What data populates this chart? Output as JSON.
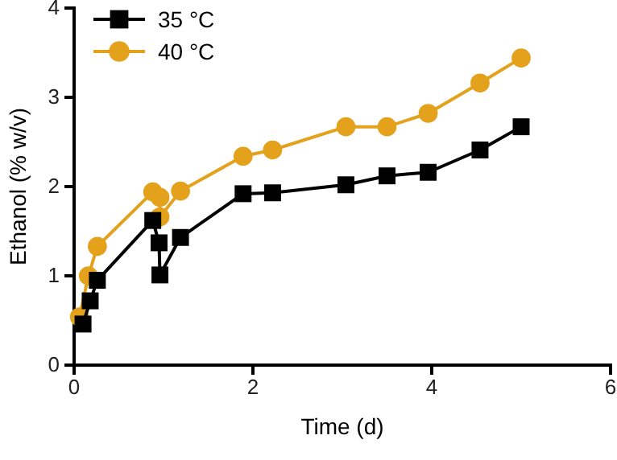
{
  "chart_data": {
    "type": "line",
    "xlabel": "Time (d)",
    "ylabel": "Ethanol (% w/v)",
    "xlim": [
      0,
      6
    ],
    "xticks": [
      0,
      2,
      4,
      6
    ],
    "ylim": [
      0,
      4
    ],
    "yticks": [
      0,
      1,
      2,
      3,
      4
    ],
    "grid": false,
    "legend": "top left",
    "line_style": "solid",
    "series": [
      {
        "name": "40 °C",
        "color": "#e3a11c",
        "marker": "circle",
        "x": [
          0.06,
          0.16,
          0.26,
          0.88,
          0.96,
          0.96,
          1.19,
          1.89,
          2.22,
          3.04,
          3.5,
          3.96,
          4.54,
          5.0
        ],
        "values": [
          0.54,
          1.0,
          1.33,
          1.94,
          1.88,
          1.66,
          1.95,
          2.34,
          2.41,
          2.67,
          2.67,
          2.82,
          3.16,
          3.44
        ]
      },
      {
        "name": "35 °C",
        "color": "#000000",
        "marker": "square",
        "x": [
          0.1,
          0.18,
          0.26,
          0.88,
          0.95,
          0.96,
          1.19,
          1.89,
          2.22,
          3.04,
          3.5,
          3.96,
          4.54,
          5.0
        ],
        "values": [
          0.46,
          0.72,
          0.95,
          1.62,
          1.37,
          1.01,
          1.43,
          1.92,
          1.93,
          2.02,
          2.12,
          2.16,
          2.41,
          2.67
        ]
      }
    ]
  }
}
